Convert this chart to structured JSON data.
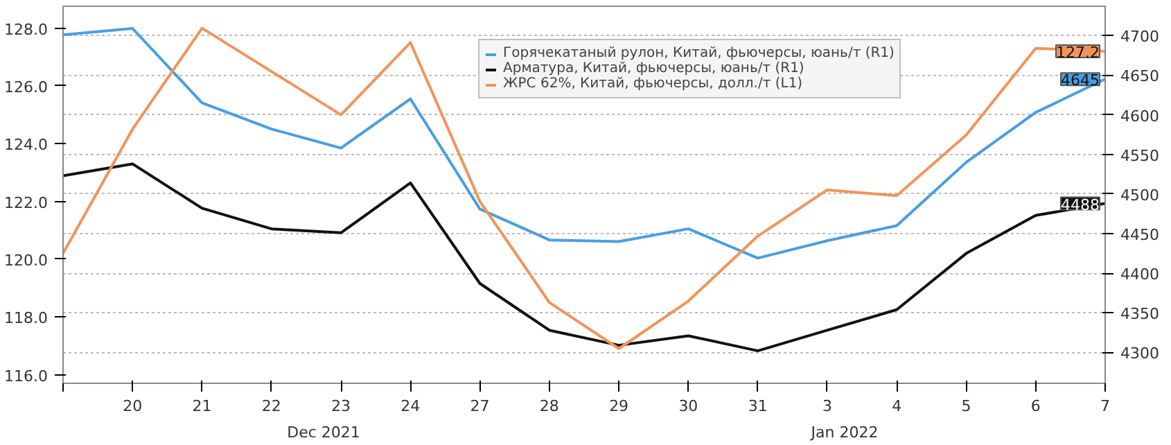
{
  "chart_data": {
    "type": "line",
    "categories": [
      null,
      "20",
      "21",
      "22",
      "23",
      "24",
      "27",
      "28",
      "29",
      "30",
      "31",
      "3",
      "4",
      "5",
      "6",
      "7"
    ],
    "series": [
      {
        "name": "Горячекатаный рулон, Китай, фьючерсы, юань/т (R1)",
        "color": "#4a9ee0",
        "axis": "y2",
        "values": [
          4701,
          4709,
          4615,
          4582,
          4558,
          4620,
          4481,
          4442,
          4440,
          4456,
          4419,
          4441,
          4460,
          4540,
          4603,
          4645
        ],
        "value_labels": [
          null,
          null,
          null,
          null,
          null,
          null,
          null,
          null,
          null,
          null,
          null,
          null,
          null,
          null,
          null,
          "4645"
        ]
      },
      {
        "name": "Арматура, Китай, фьючерсы, юань/т (R1)",
        "color": "#111111",
        "axis": "y2",
        "values": [
          4523,
          4538,
          4482,
          4456,
          4451,
          4514,
          4387,
          4328,
          4309,
          4321,
          4302,
          4328,
          4354,
          4425,
          4473,
          4488
        ],
        "value_labels": [
          null,
          null,
          null,
          null,
          null,
          null,
          null,
          null,
          null,
          null,
          null,
          null,
          null,
          null,
          null,
          "4488"
        ]
      },
      {
        "name": "ЖРС 62%, Китай, фьючерсы, долл./т (L1)",
        "color": "#f0955a",
        "axis": "y",
        "values": [
          120.2,
          124.5,
          128.0,
          126.5,
          125.0,
          127.5,
          122.0,
          118.5,
          116.9,
          118.55,
          120.8,
          122.4,
          122.2,
          124.3,
          127.3,
          127.2
        ],
        "value_labels": [
          null,
          null,
          null,
          null,
          null,
          null,
          null,
          null,
          null,
          null,
          null,
          null,
          null,
          null,
          null,
          "127.2"
        ]
      }
    ],
    "ylim": [
      115.7,
      128.76
    ],
    "yticks": [
      {
        "value": 116,
        "label": "116.0"
      },
      {
        "value": 118,
        "label": "118.0"
      },
      {
        "value": 120,
        "label": "120.0"
      },
      {
        "value": 122,
        "label": "122.0"
      },
      {
        "value": 124,
        "label": "124.0"
      },
      {
        "value": 126,
        "label": "126.0"
      },
      {
        "value": 128,
        "label": "128.0"
      }
    ],
    "y2lim": [
      4261,
      4737
    ],
    "y2ticks": [
      4300,
      4350,
      4400,
      4450,
      4500,
      4550,
      4600,
      4650,
      4700
    ],
    "annotations": [
      "Dec 2021",
      "Jan 2022"
    ],
    "grid": "y",
    "legend": "top right",
    "line_style": "solid",
    "marker": "none"
  }
}
